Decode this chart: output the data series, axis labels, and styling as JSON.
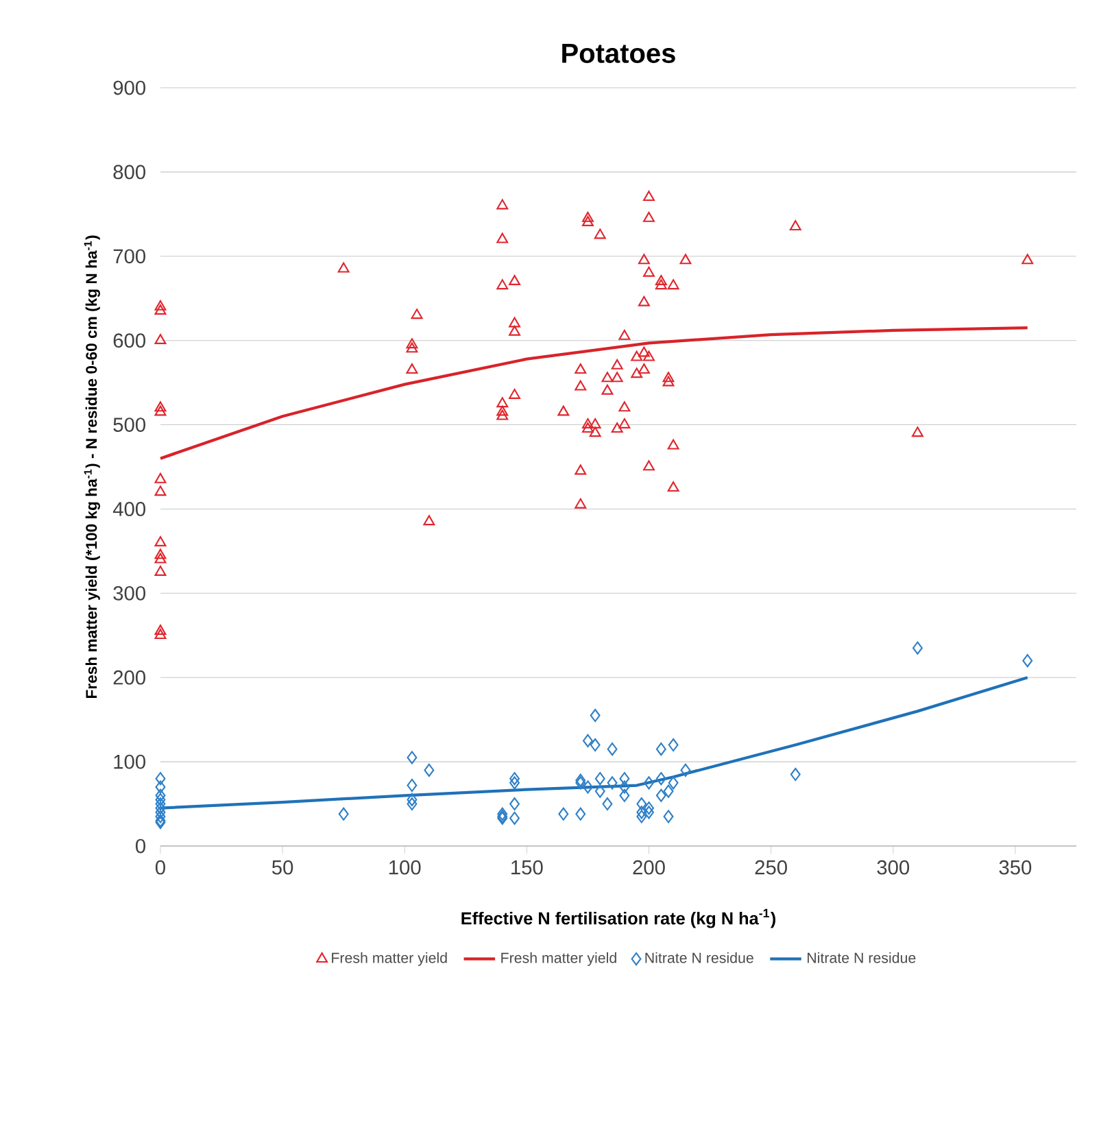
{
  "chart_data": {
    "type": "scatter",
    "title": "**Potatoes**",
    "xlabel": "**Effective N fertilisation rate (kg N ha$^{-1}$)**",
    "ylabel": "**Fresh matter yield (*100 kg ha$^{-1}$) - N residue 0-60 cm (kg N ha$^{-1}$)**",
    "xlim": [
      0,
      375
    ],
    "ylim": [
      0,
      900
    ],
    "xticks": [
      0,
      50,
      100,
      150,
      200,
      250,
      300,
      350
    ],
    "yticks": [
      0,
      100,
      200,
      300,
      400,
      500,
      600,
      700,
      800,
      900
    ],
    "grid": "y",
    "legend": "bottom",
    "series": [
      {
        "name": "Fresh matter yield",
        "marker": "triangle",
        "color": "#e0262e",
        "x": [
          0,
          0,
          0,
          0,
          0,
          0,
          0,
          0,
          0,
          0,
          0,
          0,
          0,
          75,
          103,
          103,
          103,
          105,
          110,
          140,
          140,
          140,
          140,
          140,
          140,
          145,
          145,
          145,
          145,
          165,
          172,
          172,
          172,
          172,
          175,
          175,
          175,
          175,
          178,
          178,
          180,
          183,
          183,
          187,
          187,
          187,
          190,
          190,
          190,
          195,
          195,
          198,
          198,
          198,
          198,
          200,
          200,
          200,
          200,
          200,
          205,
          205,
          208,
          208,
          210,
          210,
          210,
          215,
          260,
          310,
          355
        ],
        "values": [
          640,
          635,
          600,
          520,
          515,
          435,
          420,
          360,
          345,
          340,
          325,
          255,
          250,
          685,
          595,
          590,
          565,
          630,
          385,
          760,
          720,
          665,
          525,
          515,
          510,
          670,
          620,
          610,
          535,
          515,
          565,
          545,
          445,
          405,
          745,
          740,
          500,
          495,
          490,
          500,
          725,
          540,
          555,
          570,
          555,
          495,
          605,
          520,
          500,
          580,
          560,
          695,
          645,
          585,
          565,
          770,
          745,
          680,
          580,
          450,
          670,
          665,
          555,
          550,
          665,
          475,
          425,
          695,
          735,
          490,
          695
        ]
      },
      {
        "name": "Fresh matter yield",
        "type": "line",
        "line_style": "solid",
        "marker": "none",
        "color": "#d8232a",
        "x": [
          0,
          50,
          100,
          150,
          200,
          250,
          300,
          355
        ],
        "values": [
          460,
          510,
          548,
          578,
          597,
          607,
          612,
          615
        ]
      },
      {
        "name": "Nitrate N residue",
        "marker": "diamond",
        "color": "#2f80c8",
        "x": [
          0,
          0,
          0,
          0,
          0,
          0,
          0,
          0,
          0,
          0,
          75,
          103,
          103,
          103,
          103,
          110,
          140,
          140,
          140,
          145,
          145,
          145,
          145,
          165,
          172,
          172,
          172,
          175,
          175,
          178,
          178,
          180,
          180,
          183,
          185,
          185,
          190,
          190,
          190,
          197,
          197,
          197,
          200,
          200,
          200,
          205,
          205,
          205,
          208,
          208,
          210,
          210,
          215,
          260,
          310,
          355
        ],
        "values": [
          80,
          70,
          60,
          55,
          50,
          45,
          40,
          35,
          30,
          28,
          38,
          105,
          72,
          55,
          50,
          90,
          38,
          35,
          33,
          80,
          75,
          50,
          33,
          38,
          78,
          75,
          38,
          125,
          70,
          155,
          120,
          80,
          65,
          50,
          115,
          75,
          80,
          70,
          60,
          50,
          40,
          35,
          75,
          45,
          40,
          115,
          80,
          60,
          65,
          35,
          120,
          75,
          90,
          85,
          235,
          220
        ]
      },
      {
        "name": "Nitrate N residue",
        "type": "line",
        "line_style": "solid",
        "marker": "none",
        "color": "#1f72b8",
        "x": [
          0,
          50,
          100,
          150,
          195,
          210,
          260,
          310,
          355
        ],
        "values": [
          45,
          52,
          60,
          67,
          72,
          82,
          120,
          160,
          200
        ]
      }
    ]
  }
}
